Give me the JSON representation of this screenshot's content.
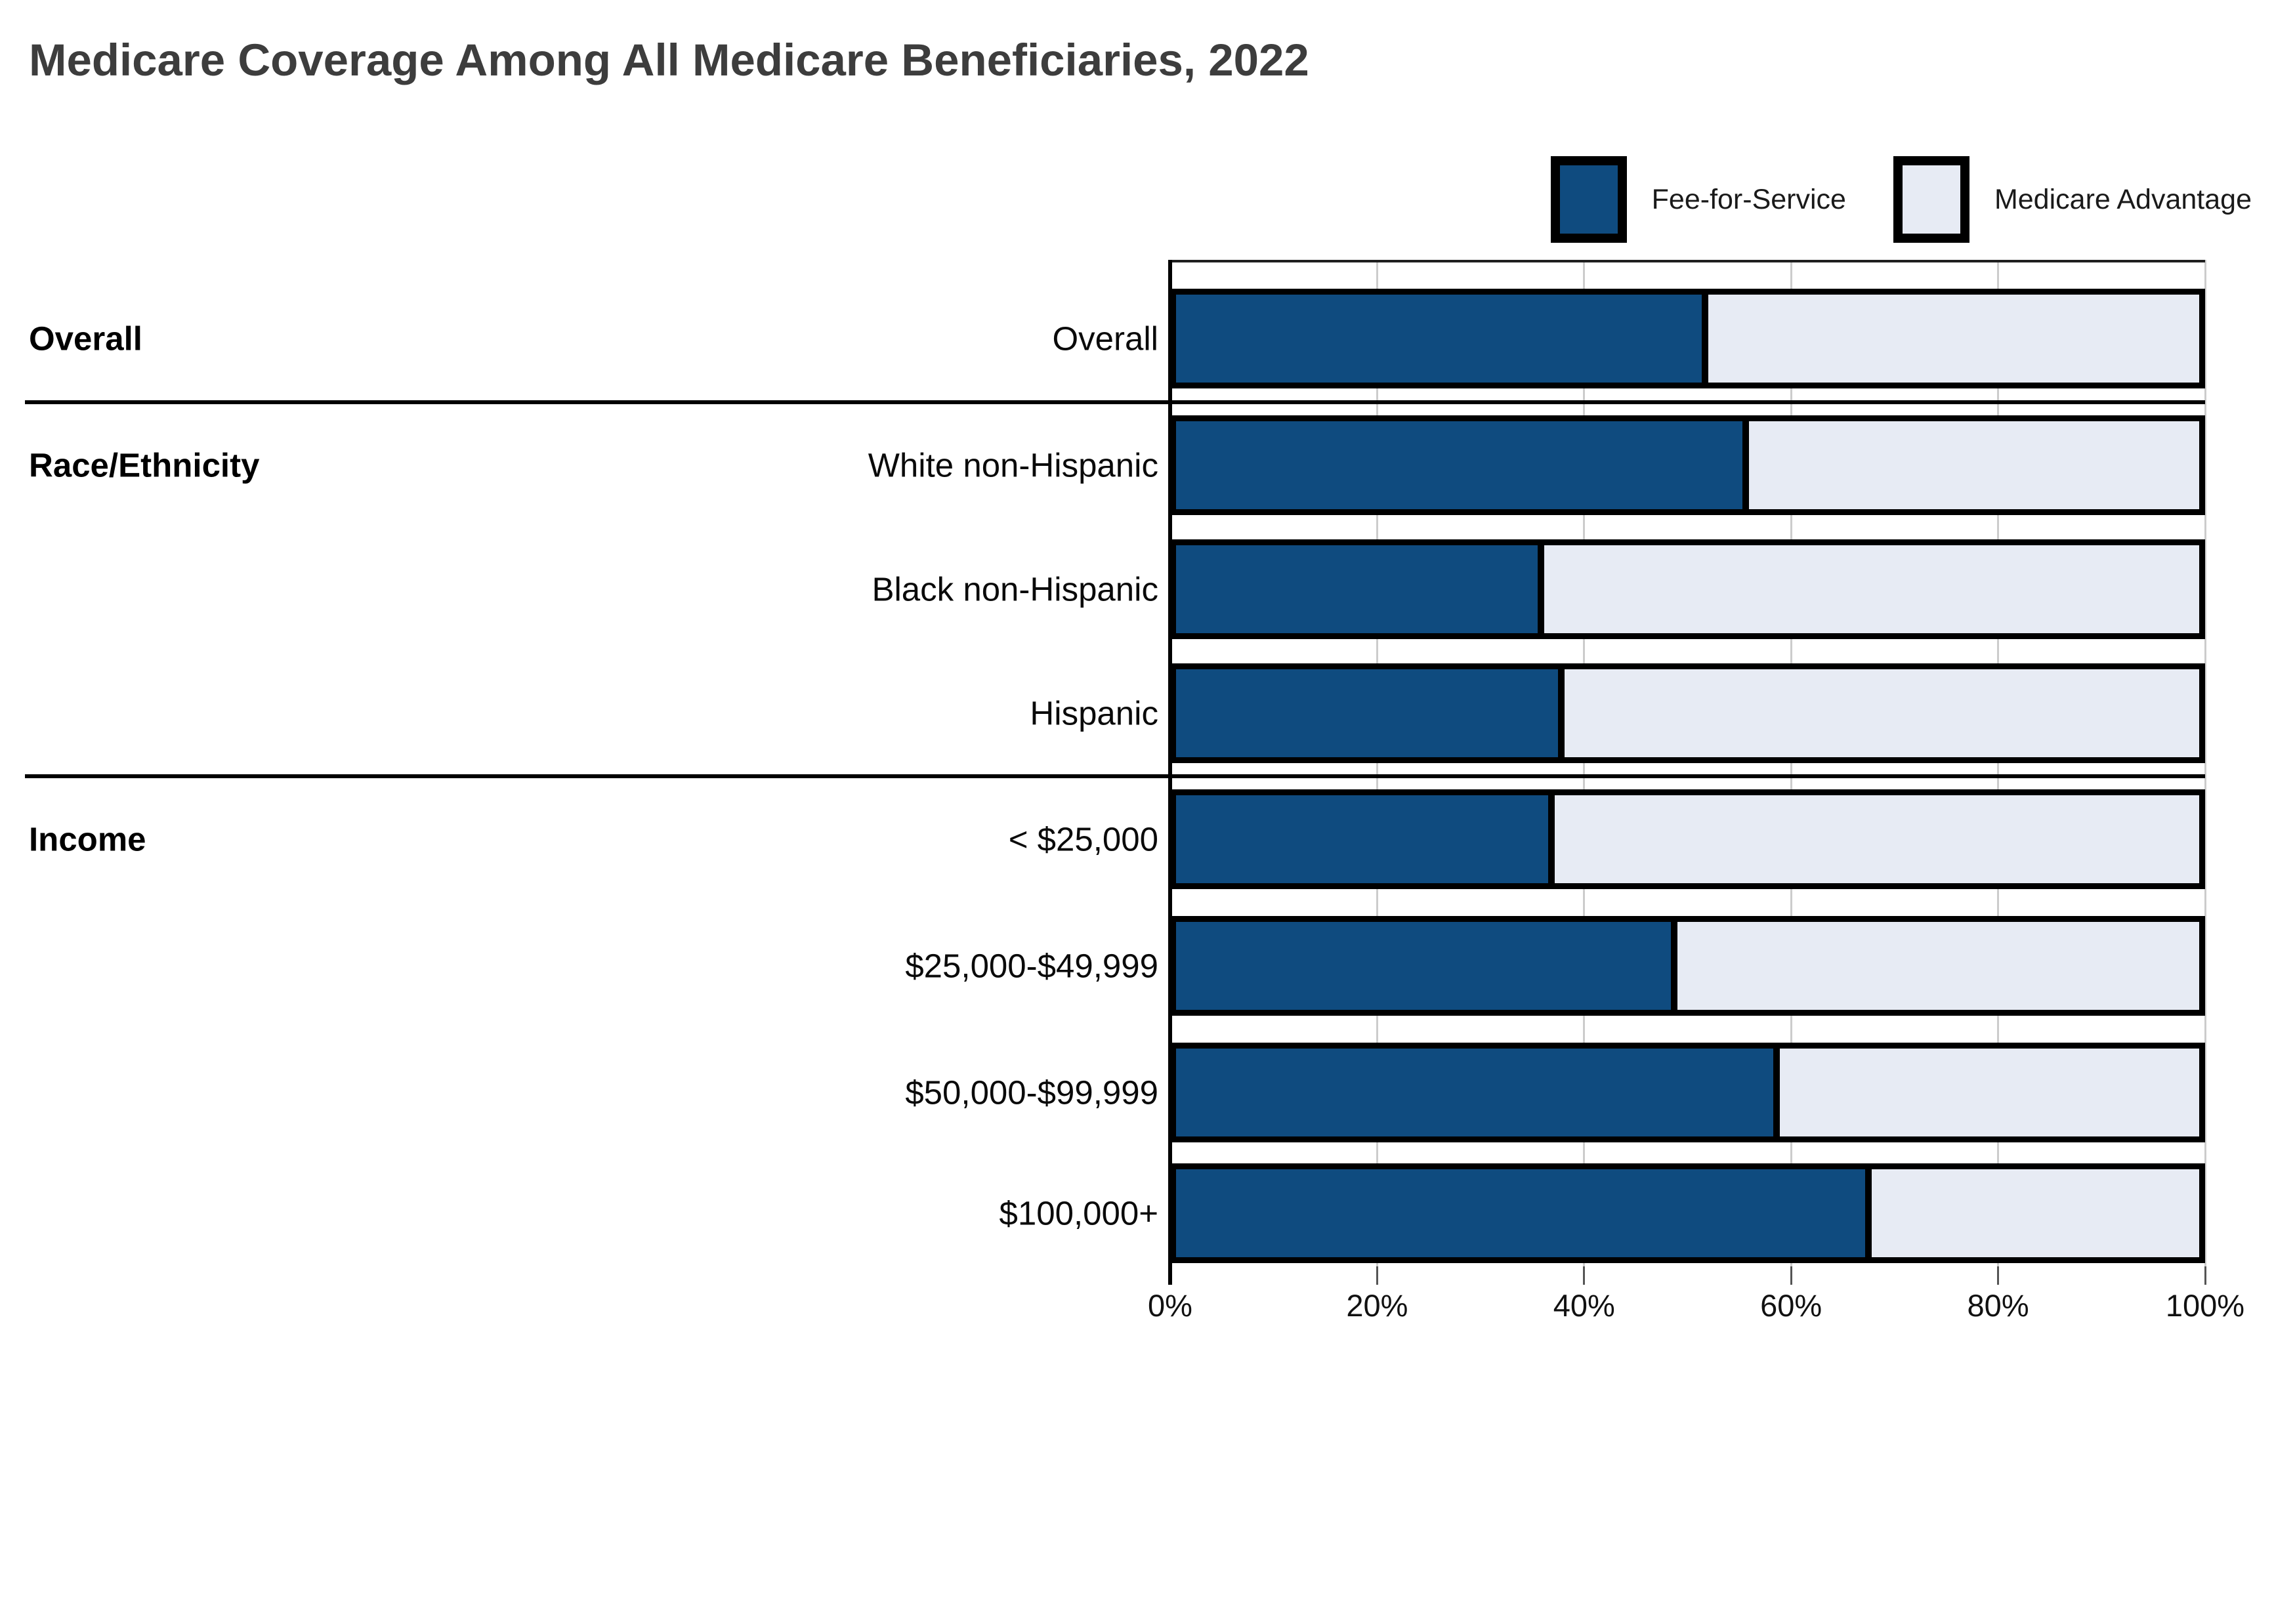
{
  "title": "Medicare Coverage Among All Medicare Beneficiaries, 2022",
  "legend": {
    "items": [
      {
        "label": "Fee-for-Service",
        "color": "#0f4b7f"
      },
      {
        "label": "Medicare Advantage",
        "color": "#e7ebf4"
      }
    ]
  },
  "colors": {
    "fee_for_service": "#0f4b7f",
    "medicare_advantage": "#e7ebf4",
    "bar_border": "#000000",
    "gridline": "#cccccc",
    "title_text": "#3d3d3d"
  },
  "chart_data": {
    "type": "bar",
    "orientation": "horizontal",
    "stacked": true,
    "title": "Medicare Coverage Among All Medicare Beneficiaries, 2022",
    "categories": [
      "Overall",
      "White non-Hispanic",
      "Black non-Hispanic",
      "Hispanic",
      "< $25,000",
      "$25,000-$49,999",
      "$50,000-$99,999",
      "$100,000+"
    ],
    "series": [
      {
        "name": "Fee-for-Service",
        "values": [
          52,
          56,
          36,
          38,
          37,
          49,
          59,
          68
        ]
      },
      {
        "name": "Medicare Advantage",
        "values": [
          48,
          44,
          64,
          62,
          63,
          51,
          41,
          32
        ]
      }
    ],
    "row_groups": [
      {
        "label": "Overall",
        "rows": [
          0
        ]
      },
      {
        "label": "Race/Ethnicity",
        "rows": [
          1,
          2,
          3
        ]
      },
      {
        "label": "Income",
        "rows": [
          4,
          5,
          6,
          7
        ]
      }
    ],
    "xlabel": "",
    "ylabel": "",
    "x_ticks": [
      "0%",
      "20%",
      "40%",
      "60%",
      "80%",
      "100%"
    ],
    "xlim": [
      0,
      100
    ],
    "grid": true,
    "legend_position": "top-right"
  }
}
